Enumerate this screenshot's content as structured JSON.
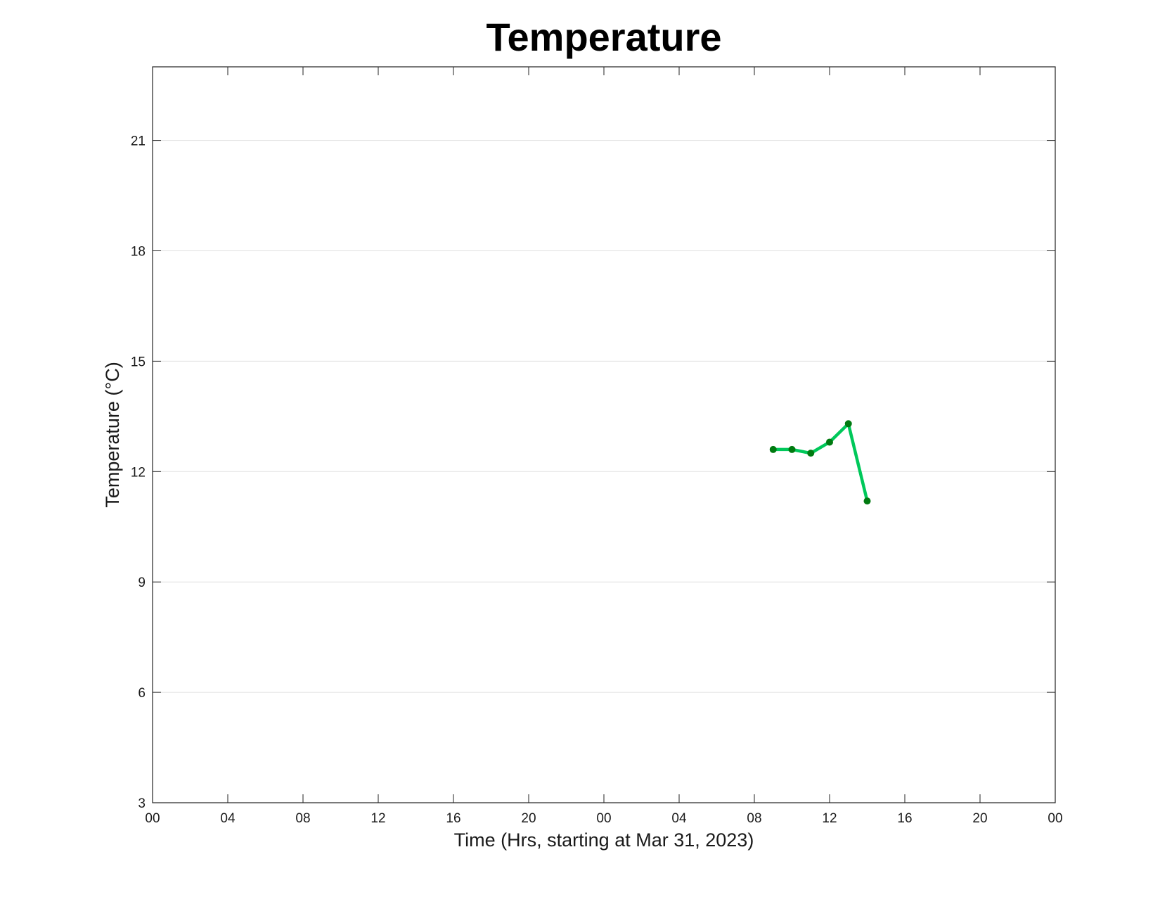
{
  "chart_data": {
    "type": "line",
    "title": "Temperature",
    "xlabel": "Time (Hrs, starting at Mar 31, 2023)",
    "ylabel": "Temperature (°C)",
    "x": [
      33,
      34,
      35,
      36,
      37,
      38
    ],
    "series": [
      {
        "name": "Temperature",
        "color": "#00c85a",
        "marker_color": "#007a10",
        "values": [
          12.6,
          12.6,
          12.5,
          12.8,
          13.3,
          11.2
        ]
      }
    ],
    "xlim": [
      0,
      48
    ],
    "xticks": [
      {
        "value": 0,
        "label": "00"
      },
      {
        "value": 4,
        "label": "04"
      },
      {
        "value": 8,
        "label": "08"
      },
      {
        "value": 12,
        "label": "12"
      },
      {
        "value": 16,
        "label": "16"
      },
      {
        "value": 20,
        "label": "20"
      },
      {
        "value": 24,
        "label": "00"
      },
      {
        "value": 28,
        "label": "04"
      },
      {
        "value": 32,
        "label": "08"
      },
      {
        "value": 36,
        "label": "12"
      },
      {
        "value": 40,
        "label": "16"
      },
      {
        "value": 44,
        "label": "20"
      },
      {
        "value": 48,
        "label": "00"
      }
    ],
    "ylim": [
      3,
      23
    ],
    "yticks": [
      3,
      6,
      9,
      12,
      15,
      18,
      21
    ],
    "grid": true
  }
}
